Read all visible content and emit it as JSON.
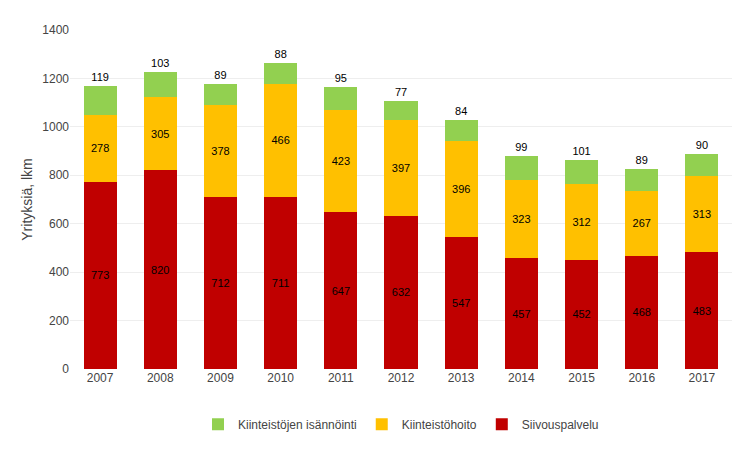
{
  "chart_data": {
    "type": "bar",
    "stacked": true,
    "data_labels": true,
    "grid": true,
    "legend": "bottom",
    "ylabel": "Yrityksiä, lkm",
    "categories": [
      "2007",
      "2008",
      "2009",
      "2010",
      "2011",
      "2012",
      "2013",
      "2014",
      "2015",
      "2016",
      "2017"
    ],
    "series": [
      {
        "name": "Siivouspalvelu",
        "color": "#C00000",
        "values": [
          773,
          820,
          712,
          711,
          647,
          632,
          547,
          457,
          452,
          468,
          483
        ]
      },
      {
        "name": "Kiinteistöhoito",
        "color": "#FFC000",
        "values": [
          278,
          305,
          378,
          466,
          423,
          397,
          396,
          323,
          312,
          267,
          313
        ]
      },
      {
        "name": "Kiinteistöjen isännöinti",
        "color": "#92D050",
        "values": [
          119,
          103,
          89,
          88,
          95,
          77,
          84,
          99,
          101,
          89,
          90
        ]
      }
    ],
    "ylim": [
      0,
      1400
    ],
    "yticks": [
      0,
      200,
      400,
      600,
      800,
      1000,
      1200,
      1400
    ]
  }
}
